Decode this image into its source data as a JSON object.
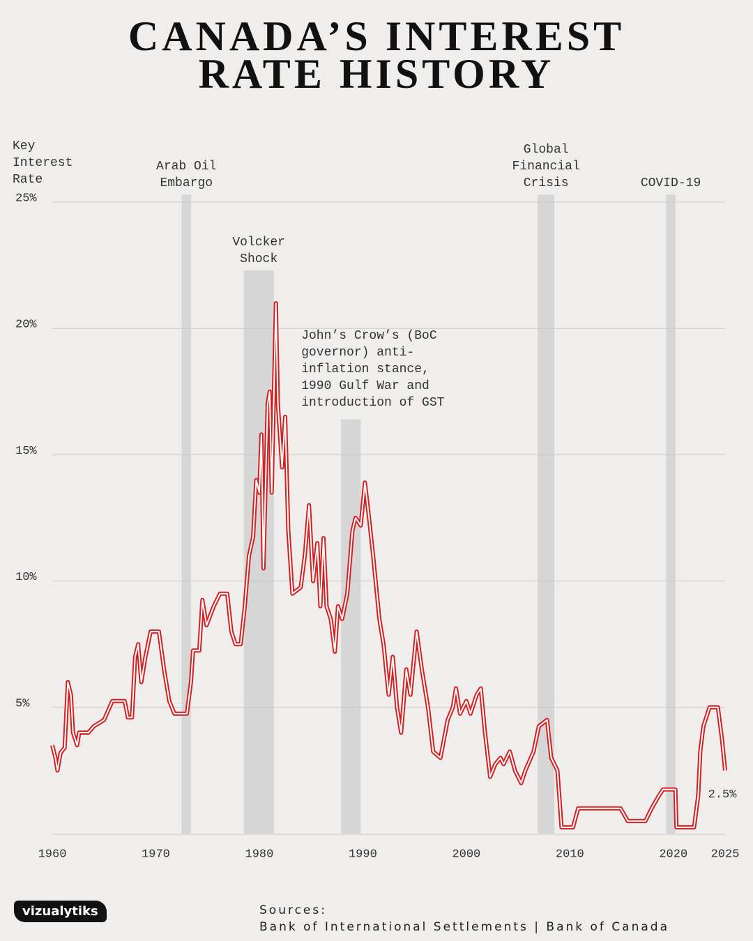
{
  "chart_data": {
    "type": "line",
    "title_lines": [
      "CANADA’S INTEREST",
      "RATE HISTORY"
    ],
    "y_axis_label": "Key Interest Rate",
    "xlim": [
      1960,
      2025
    ],
    "xticks": [
      1960,
      1970,
      1980,
      1990,
      2000,
      2010,
      2020,
      2025
    ],
    "ylim": [
      0,
      25
    ],
    "yticks": [
      {
        "value": 5,
        "label": "5%"
      },
      {
        "value": 10,
        "label": "10%"
      },
      {
        "value": 15,
        "label": "15%"
      },
      {
        "value": 20,
        "label": "20%"
      },
      {
        "value": 25,
        "label": "25%"
      }
    ],
    "grid": true,
    "color": "#d42020",
    "x": [
      1960.0,
      1960.3,
      1960.5,
      1960.8,
      1961.2,
      1961.5,
      1961.8,
      1962.0,
      1962.4,
      1962.6,
      1963.5,
      1964.0,
      1965.0,
      1965.8,
      1967.0,
      1967.3,
      1967.7,
      1968.0,
      1968.3,
      1968.6,
      1969.0,
      1969.5,
      1970.3,
      1970.8,
      1971.3,
      1971.8,
      1973.0,
      1973.4,
      1973.6,
      1974.2,
      1974.5,
      1974.9,
      1975.6,
      1976.2,
      1976.9,
      1977.3,
      1977.7,
      1978.2,
      1978.6,
      1979.0,
      1979.4,
      1979.7,
      1980.0,
      1980.2,
      1980.4,
      1980.8,
      1981.0,
      1981.2,
      1981.6,
      1981.8,
      1982.2,
      1982.5,
      1982.8,
      1983.2,
      1984.0,
      1984.4,
      1984.8,
      1985.2,
      1985.6,
      1985.9,
      1986.2,
      1986.5,
      1986.9,
      1987.3,
      1987.6,
      1988.0,
      1988.5,
      1989.0,
      1989.3,
      1989.8,
      1990.2,
      1990.6,
      1991.0,
      1991.6,
      1992.0,
      1992.5,
      1992.9,
      1993.3,
      1993.7,
      1994.2,
      1994.6,
      1995.2,
      1995.7,
      1996.3,
      1996.8,
      1997.5,
      1998.2,
      1998.7,
      1999.0,
      1999.4,
      2000.0,
      2000.4,
      2001.0,
      2001.4,
      2001.8,
      2002.3,
      2002.8,
      2003.3,
      2003.6,
      2004.2,
      2004.7,
      2005.3,
      2005.7,
      2006.5,
      2007.0,
      2007.8,
      2008.2,
      2008.8,
      2009.2,
      2010.3,
      2010.8,
      2014.9,
      2015.6,
      2017.3,
      2017.9,
      2018.6,
      2019.0,
      2020.2,
      2020.3,
      2022.0,
      2022.4,
      2022.6,
      2022.9,
      2023.5,
      2024.3,
      2024.7,
      2025.0
    ],
    "values": [
      3.5,
      3.0,
      2.5,
      3.2,
      3.4,
      6.0,
      5.5,
      4.0,
      3.5,
      4.0,
      4.0,
      4.25,
      4.5,
      5.25,
      5.25,
      4.6,
      4.6,
      7.0,
      7.5,
      6.0,
      7.0,
      8.0,
      8.0,
      6.5,
      5.25,
      4.75,
      4.75,
      6.0,
      7.25,
      7.25,
      9.25,
      8.25,
      9.0,
      9.5,
      9.5,
      8.0,
      7.5,
      7.5,
      9.0,
      11.0,
      11.75,
      14.0,
      13.5,
      15.8,
      10.5,
      17.0,
      17.5,
      13.5,
      21.0,
      17.0,
      14.5,
      16.5,
      12.0,
      9.5,
      9.75,
      11.0,
      13.0,
      10.0,
      11.5,
      9.0,
      11.7,
      9.0,
      8.5,
      7.2,
      9.0,
      8.5,
      9.5,
      12.0,
      12.5,
      12.2,
      13.9,
      12.5,
      11.0,
      8.5,
      7.5,
      5.5,
      7.0,
      5.0,
      4.0,
      6.5,
      5.5,
      8.0,
      6.5,
      5.0,
      3.25,
      3.0,
      4.5,
      5.0,
      5.75,
      4.75,
      5.25,
      4.75,
      5.5,
      5.75,
      4.0,
      2.25,
      2.75,
      3.0,
      2.75,
      3.25,
      2.5,
      2.0,
      2.5,
      3.25,
      4.25,
      4.5,
      3.0,
      2.5,
      0.25,
      0.25,
      1.0,
      1.0,
      0.5,
      0.5,
      1.0,
      1.5,
      1.75,
      1.75,
      0.25,
      0.25,
      1.5,
      3.25,
      4.25,
      5.0,
      5.0,
      3.75,
      2.5
    ],
    "end_label": {
      "value": 2.5,
      "label": "2.5%"
    },
    "events": [
      {
        "label": "Arab Oil Embargo",
        "start": 1972.5,
        "end": 1973.4,
        "top": 25.3
      },
      {
        "label": "Volcker Shock",
        "start": 1978.5,
        "end": 1981.4,
        "top": 22.3
      },
      {
        "label": "John’s Crow’s (BoC governor) anti-inflation stance, 1990 Gulf War and introduction of GST",
        "start": 1987.9,
        "end": 1989.8,
        "top": 16.4,
        "label_align": "left"
      },
      {
        "label": "Global Financial Crisis",
        "start": 2006.9,
        "end": 2008.5,
        "top": 25.3
      },
      {
        "label": "COVID-19",
        "start": 2019.3,
        "end": 2020.2,
        "top": 25.3
      }
    ],
    "brand": "vizualytiks",
    "source_title": "Sources:",
    "source": "Bank of International Settlements | Bank of Canada"
  }
}
